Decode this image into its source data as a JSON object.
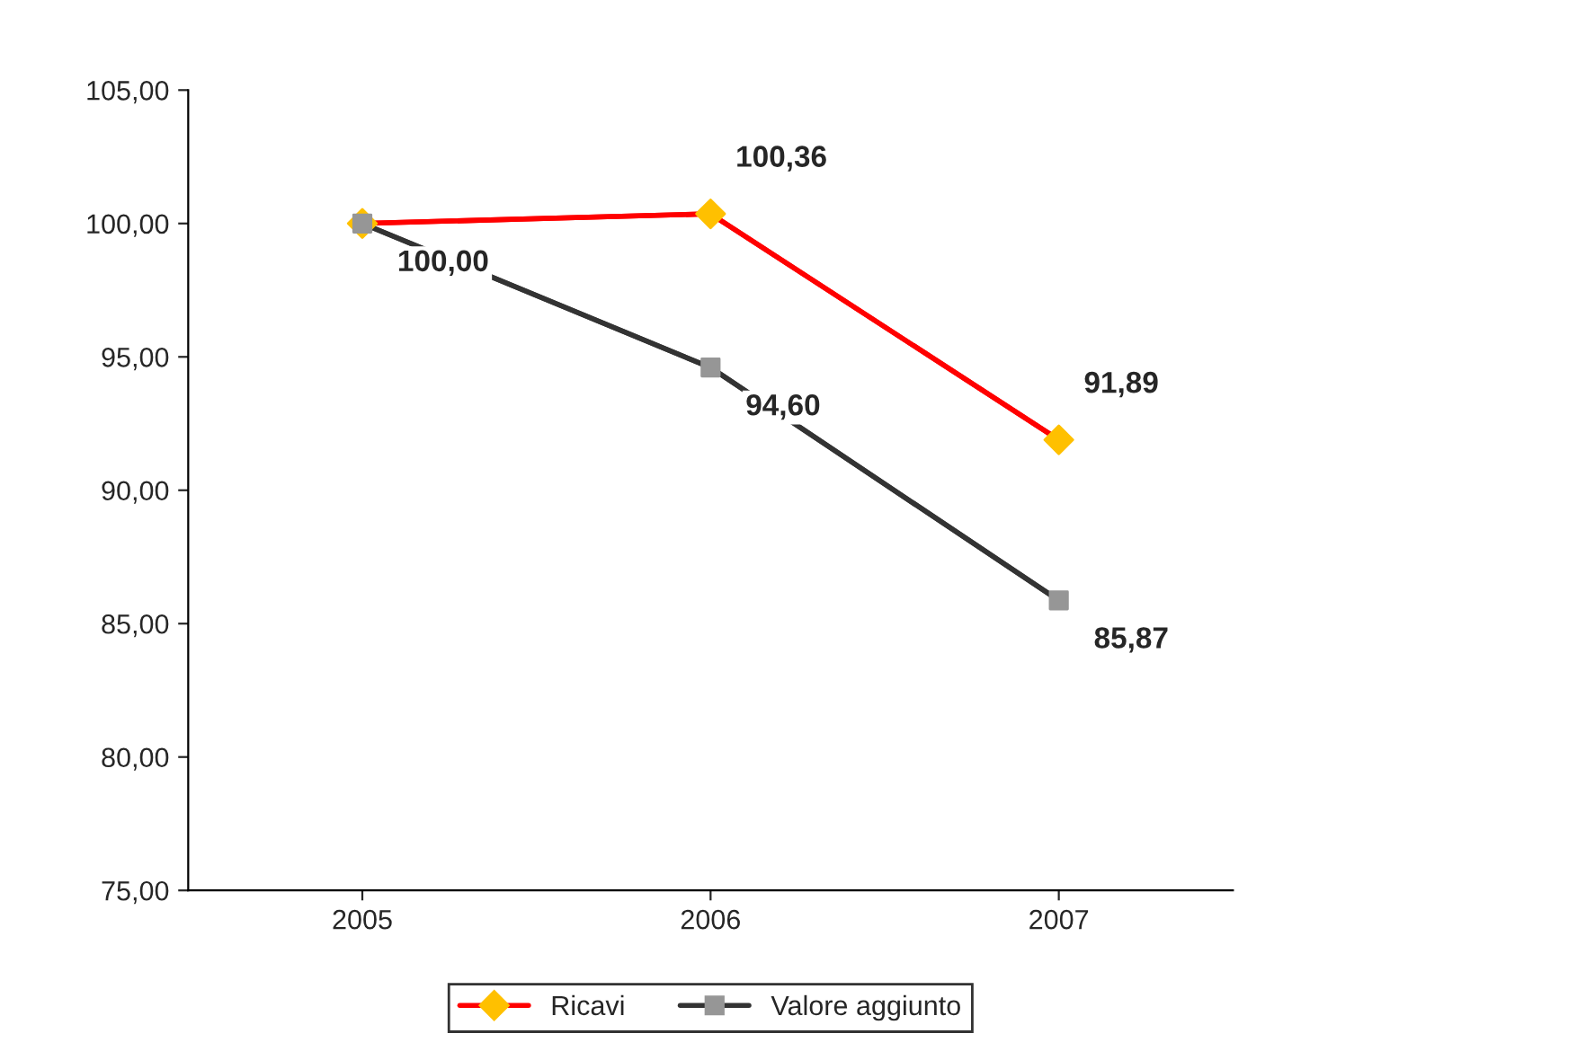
{
  "chart_data": {
    "type": "line",
    "categories": [
      "2005",
      "2006",
      "2007"
    ],
    "series": [
      {
        "name": "Ricavi",
        "color": "#ff0000",
        "colors": [
          "#ffc000",
          "#ffc000",
          "#ffc000"
        ],
        "marker": "diamond",
        "values": [
          100.0,
          100.36,
          91.89
        ],
        "value_labels": [
          null,
          "100,36",
          "91,89"
        ]
      },
      {
        "name": "Valore aggiunto",
        "color": "#333333",
        "colors": [
          "#969696",
          "#969696",
          "#969696"
        ],
        "marker": "square",
        "values": [
          100.0,
          94.6,
          85.87
        ],
        "value_labels": [
          "100,00",
          "94,60",
          "85,87"
        ]
      }
    ],
    "ylim": [
      75,
      105
    ],
    "yticks": [
      {
        "value": 75,
        "label": "75,00"
      },
      {
        "value": 80,
        "label": "80,00"
      },
      {
        "value": 85,
        "label": "85,00"
      },
      {
        "value": 90,
        "label": "90,00"
      },
      {
        "value": 95,
        "label": "95,00"
      },
      {
        "value": 100,
        "label": "100,00"
      },
      {
        "value": 105,
        "label": "105,00"
      }
    ],
    "grid": false,
    "legend": "bottom",
    "line_style": "solid"
  }
}
